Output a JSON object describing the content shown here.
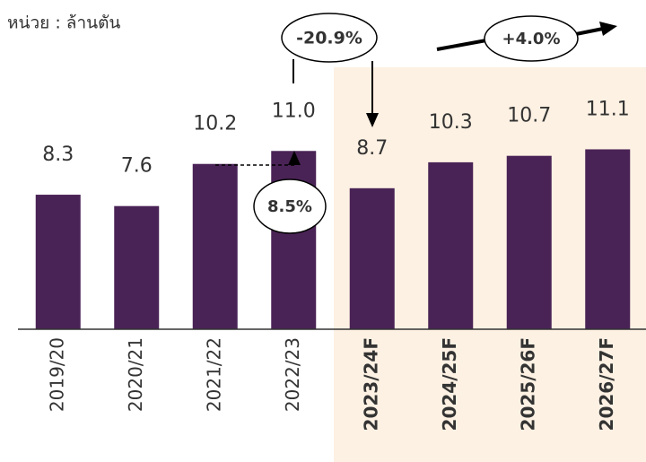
{
  "chart_data": {
    "type": "bar",
    "subtitle": "หน่วย : ล้านตัน",
    "categories": [
      "2019/20",
      "2020/21",
      "2021/22",
      "2022/23",
      "2023/24F",
      "2024/25F",
      "2025/26F",
      "2026/27F"
    ],
    "values": [
      8.3,
      7.6,
      10.2,
      11.0,
      8.7,
      10.3,
      10.7,
      11.1
    ],
    "value_labels": [
      "8.3",
      "7.6",
      "10.2",
      "11.0",
      "8.7",
      "10.3",
      "10.7",
      "11.1"
    ],
    "color": "#4a2356",
    "ylim": [
      0,
      15
    ],
    "annotations": [
      "-20.9%",
      "+4.0%",
      "8.5%"
    ]
  }
}
